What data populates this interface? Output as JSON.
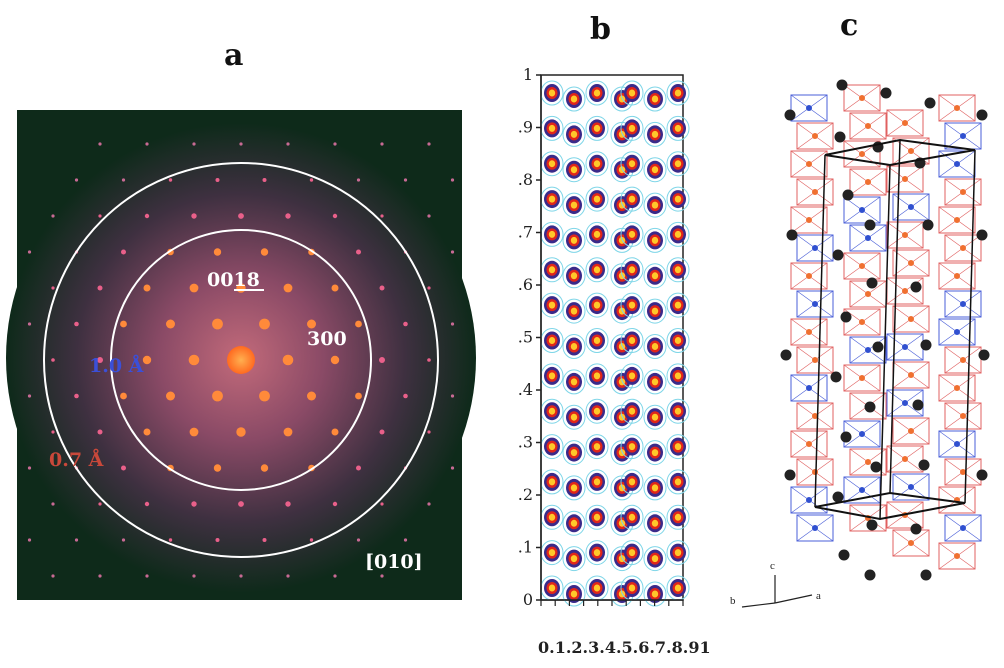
{
  "panels": {
    "a": {
      "label": "a"
    },
    "b": {
      "label": "b"
    },
    "c": {
      "label": "c"
    }
  },
  "diffraction": {
    "reflection_1": "0018",
    "reflection_2": "300",
    "resolution_outer": "0.7 Å",
    "resolution_inner": "1.0 Å",
    "zone_axis": "[010]",
    "colors": {
      "background": "#0e2a1a",
      "halo": "#7a3a5a",
      "spot": "#ff8a3a",
      "inner_ring_label": "#3b4fd8",
      "outer_ring_label": "#c9483a"
    }
  },
  "density_map": {
    "y_ticks": [
      "0",
      ".1",
      ".2",
      ".3",
      ".4",
      ".5",
      ".6",
      ".7",
      ".8",
      ".9",
      "1"
    ],
    "x_tick_text": "0.1.2.3.4.5.6.7.8.91"
  },
  "structure": {
    "axis_labels": {
      "c": "c",
      "a": "a",
      "b": "b"
    },
    "colors": {
      "octahedra_red": "#e06060",
      "octahedra_blue": "#4a5fd8",
      "atom_black": "#222222",
      "atom_orange": "#f07030",
      "atom_blue": "#3050d0"
    }
  }
}
